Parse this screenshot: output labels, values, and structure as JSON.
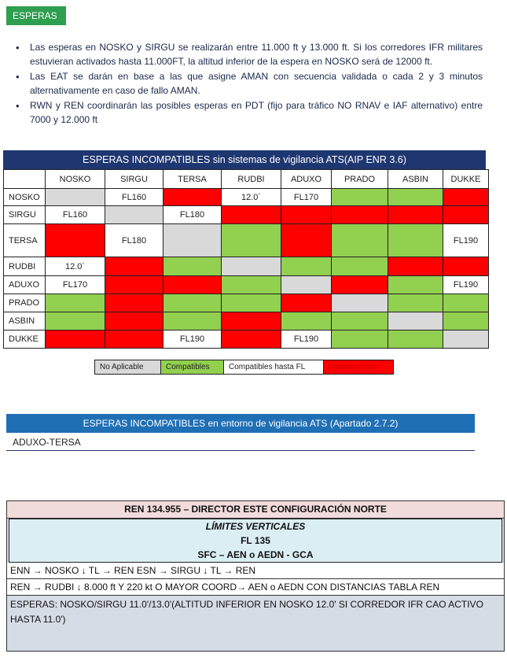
{
  "header": {
    "badge": "ESPERAS"
  },
  "bullets": [
    "Las esperas en NOSKO y SIRGU se realizarán entre 11.000 ft y 13.000 ft. Si los corredores IFR militares estuvieran activados hasta 11.000FT, la altitud inferior de la espera en NOSKO será de 12000 ft.",
    "Las EAT se darán en base a las que asigne AMAN con secuencia validada o cada 2 y 3 minutos alternativamente en caso de fallo AMAN.",
    "RWN y REN coordinarán las posibles esperas en PDT (fijo para tráfico NO RNAV e IAF alternativo) entre 7000 y 12.000 ft"
  ],
  "grid": {
    "title": "ESPERAS INCOMPATIBLES sin sistemas de vigilancia ATS(AIP ENR 3.6)",
    "columns": [
      "NOSKO",
      "SIRGU",
      "TERSA",
      "RUDBI",
      "ADUXO",
      "PRADO",
      "ASBIN",
      "DUKKE"
    ],
    "rows": [
      {
        "name": "NOSKO",
        "cells": [
          {
            "s": "na",
            "t": ""
          },
          {
            "s": "fl",
            "t": "FL160"
          },
          {
            "s": "in",
            "t": ""
          },
          {
            "s": "fl",
            "t": "12.0´"
          },
          {
            "s": "fl",
            "t": "FL170"
          },
          {
            "s": "ok",
            "t": ""
          },
          {
            "s": "ok",
            "t": ""
          },
          {
            "s": "in",
            "t": ""
          }
        ]
      },
      {
        "name": "SIRGU",
        "cells": [
          {
            "s": "fl",
            "t": "FL160"
          },
          {
            "s": "na",
            "t": ""
          },
          {
            "s": "fl",
            "t": "FL180"
          },
          {
            "s": "in",
            "t": ""
          },
          {
            "s": "in",
            "t": ""
          },
          {
            "s": "in",
            "t": ""
          },
          {
            "s": "in",
            "t": ""
          },
          {
            "s": "in",
            "t": ""
          }
        ]
      },
      {
        "name": "TERSA",
        "cells": [
          {
            "s": "in",
            "t": ""
          },
          {
            "s": "fl",
            "t": "FL180"
          },
          {
            "s": "na",
            "t": ""
          },
          {
            "s": "ok",
            "t": ""
          },
          {
            "s": "in",
            "t": ""
          },
          {
            "s": "ok",
            "t": ""
          },
          {
            "s": "ok",
            "t": ""
          },
          {
            "s": "fl",
            "t": "FL190"
          }
        ]
      },
      {
        "name": "RUDBI",
        "cells": [
          {
            "s": "fl",
            "t": "12.0´"
          },
          {
            "s": "in",
            "t": ""
          },
          {
            "s": "ok",
            "t": ""
          },
          {
            "s": "na",
            "t": ""
          },
          {
            "s": "ok",
            "t": ""
          },
          {
            "s": "ok",
            "t": ""
          },
          {
            "s": "in",
            "t": ""
          },
          {
            "s": "in",
            "t": ""
          }
        ]
      },
      {
        "name": "ADUXO",
        "cells": [
          {
            "s": "fl",
            "t": "FL170"
          },
          {
            "s": "in",
            "t": ""
          },
          {
            "s": "in",
            "t": ""
          },
          {
            "s": "ok",
            "t": ""
          },
          {
            "s": "na",
            "t": ""
          },
          {
            "s": "in",
            "t": ""
          },
          {
            "s": "ok",
            "t": ""
          },
          {
            "s": "fl",
            "t": "FL190"
          }
        ]
      },
      {
        "name": "PRADO",
        "cells": [
          {
            "s": "ok",
            "t": ""
          },
          {
            "s": "in",
            "t": ""
          },
          {
            "s": "ok",
            "t": ""
          },
          {
            "s": "ok",
            "t": ""
          },
          {
            "s": "in",
            "t": ""
          },
          {
            "s": "na",
            "t": ""
          },
          {
            "s": "ok",
            "t": ""
          },
          {
            "s": "ok",
            "t": ""
          }
        ]
      },
      {
        "name": "ASBIN",
        "cells": [
          {
            "s": "ok",
            "t": ""
          },
          {
            "s": "in",
            "t": ""
          },
          {
            "s": "ok",
            "t": ""
          },
          {
            "s": "in",
            "t": ""
          },
          {
            "s": "ok",
            "t": ""
          },
          {
            "s": "ok",
            "t": ""
          },
          {
            "s": "na",
            "t": ""
          },
          {
            "s": "ok",
            "t": ""
          }
        ]
      },
      {
        "name": "DUKKE",
        "cells": [
          {
            "s": "in",
            "t": ""
          },
          {
            "s": "in",
            "t": ""
          },
          {
            "s": "fl",
            "t": "FL190"
          },
          {
            "s": "in",
            "t": ""
          },
          {
            "s": "fl",
            "t": "FL190"
          },
          {
            "s": "ok",
            "t": ""
          },
          {
            "s": "ok",
            "t": ""
          },
          {
            "s": "na",
            "t": ""
          }
        ]
      }
    ]
  },
  "legend": [
    {
      "s": "na",
      "label": "No Aplicable"
    },
    {
      "s": "ok",
      "label": "Compatibles"
    },
    {
      "s": "fl",
      "label": "Compatibles hasta FL"
    },
    {
      "s": "in",
      "label": "Incompatibles"
    }
  ],
  "colors": {
    "na": "#d9d9d9",
    "ok": "#92d050",
    "fl": "#ffffff",
    "in": "#ff0000",
    "header_navy": "#1f3770",
    "header_blue": "#1f6fb5",
    "badge_green": "#2e9e4f"
  },
  "ats": {
    "title": "ESPERAS INCOMPATIBLES en entorno de vigilancia ATS (Apartado 2.7.2)",
    "item": "ADUXO-TERSA"
  },
  "ren": {
    "title": "REN 134.955 – DIRECTOR ESTE CONFIGURACIÓN NORTE",
    "limits_label": "LÍMITES VERTICALES",
    "limits_fl": "FL 135",
    "limits_range": "SFC – AEN o AEDN - GCA",
    "line1": "ENN → NOSKO ↓ TL → REN    ESN → SIRGU ↓ TL → REN",
    "line2": "REN → RUDBI ↓ 8.000 ft Y 220 kt O MAYOR COORD→ AEN o AEDN CON DISTANCIAS TABLA REN",
    "esperas": "ESPERAS:  NOSKO/SIRGU 11.0'/13.0'(ALTITUD INFERIOR EN NOSKO 12.0' SI CORREDOR IFR CAO ACTIVO HASTA 11.0')"
  }
}
